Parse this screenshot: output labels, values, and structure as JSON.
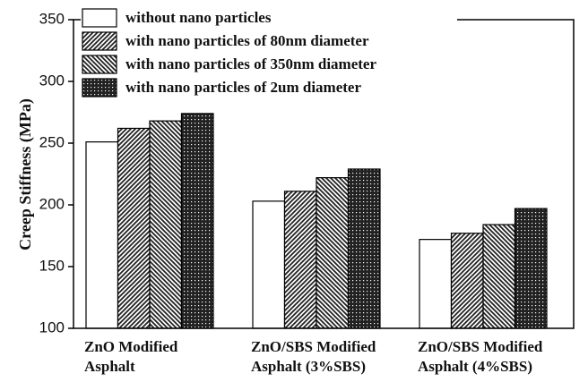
{
  "chart_data": {
    "type": "bar",
    "y_label": "Creep Stiffness (MPa)",
    "categories": [
      [
        "ZnO Modified",
        "Asphalt"
      ],
      [
        "ZnO/SBS Modified",
        "Asphalt (3%SBS)"
      ],
      [
        "ZnO/SBS Modified",
        "Asphalt (4%SBS)"
      ]
    ],
    "series": [
      {
        "name": "without nano particles",
        "color": "#ffffff",
        "pattern": "none",
        "values": [
          251,
          203,
          172
        ]
      },
      {
        "name": "with nano particles of 80nm diameter",
        "color": "#222222",
        "pattern": "forward-hatch",
        "values": [
          262,
          211,
          177
        ]
      },
      {
        "name": "with nano particles of 350nm diameter",
        "color": "#222222",
        "pattern": "back-hatch",
        "values": [
          268,
          222,
          184
        ]
      },
      {
        "name": "with nano particles of 2um diameter",
        "color": "#222222",
        "pattern": "dots",
        "values": [
          274,
          229,
          197
        ]
      }
    ],
    "ylim": [
      100,
      350
    ],
    "yticks": [
      100,
      150,
      200,
      250,
      300,
      350
    ],
    "legend": "upper left"
  }
}
